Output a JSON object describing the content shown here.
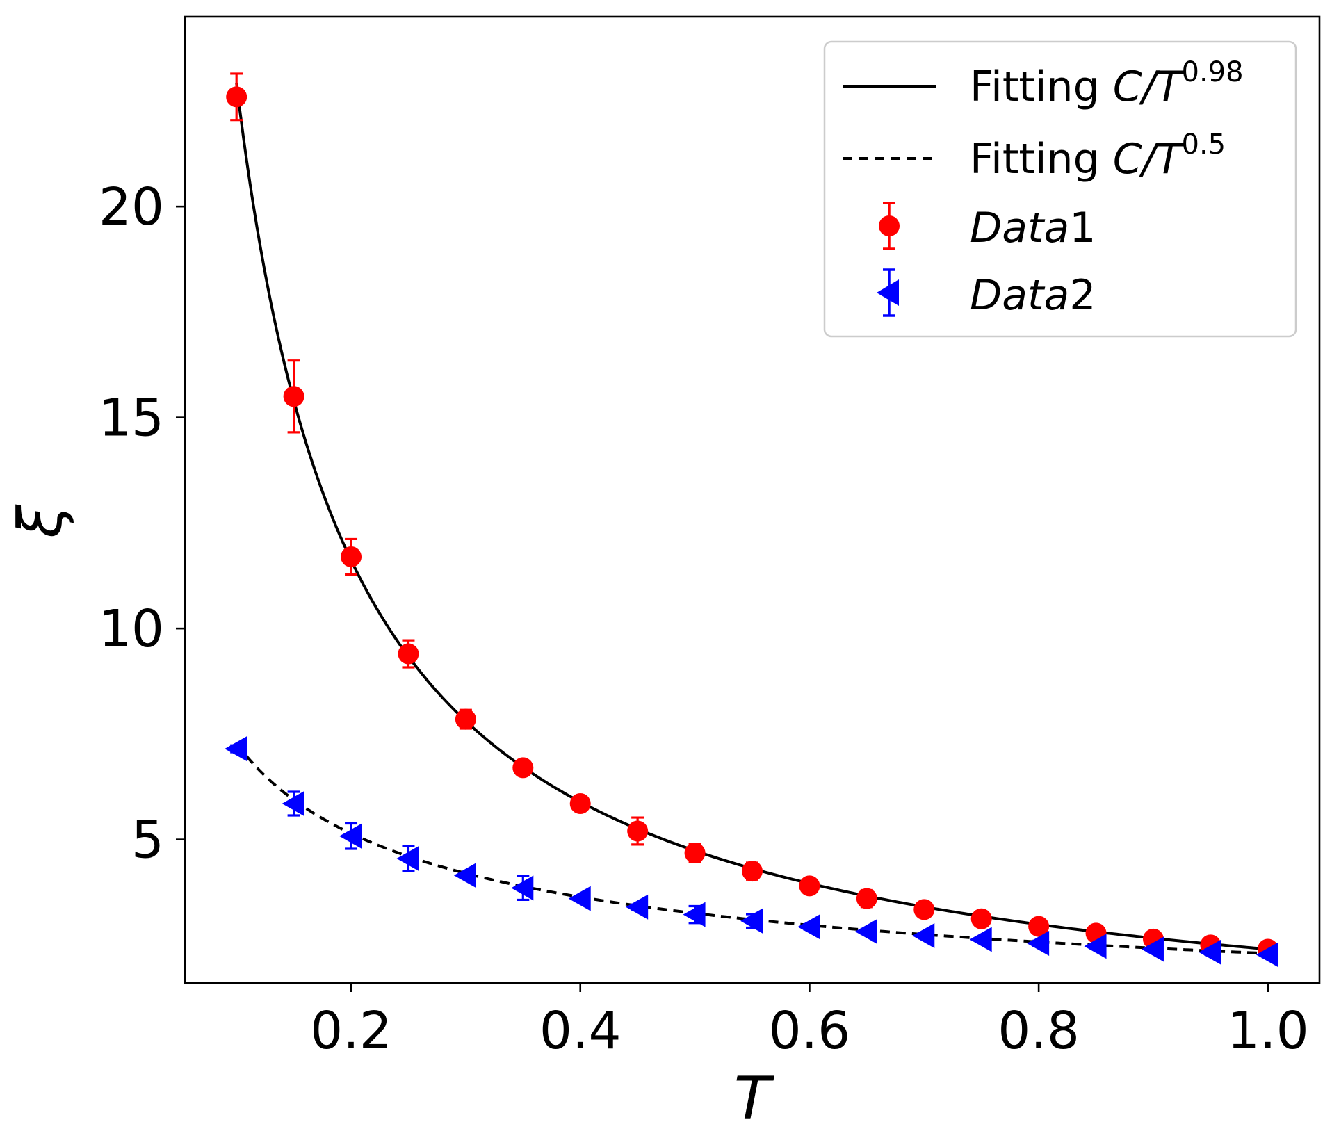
{
  "chart_data": {
    "type": "scatter",
    "title": "",
    "xlabel": "T",
    "ylabel": "ξ",
    "xlim": [
      0.055,
      1.045
    ],
    "ylim": [
      1.6,
      24.5
    ],
    "grid": false,
    "legend_position": "top-right",
    "x_ticks": [
      {
        "value": 0.2,
        "label": "0.2"
      },
      {
        "value": 0.4,
        "label": "0.4"
      },
      {
        "value": 0.6,
        "label": "0.6"
      },
      {
        "value": 0.8,
        "label": "0.8"
      },
      {
        "value": 1.0,
        "label": "1.0"
      }
    ],
    "y_ticks": [
      {
        "value": 5,
        "label": "5"
      },
      {
        "value": 10,
        "label": "10"
      },
      {
        "value": 15,
        "label": "15"
      },
      {
        "value": 20,
        "label": "20"
      }
    ],
    "legend": [
      {
        "name": "Fitting C/T^0.98",
        "prefix": "Fitting ",
        "math": "C/T",
        "exponent": "0.98",
        "style": "line-solid"
      },
      {
        "name": "Fitting C/T^0.5",
        "prefix": "Fitting ",
        "math": "C/T",
        "exponent": "0.5",
        "style": "line-dashed"
      },
      {
        "name": "Data1",
        "italic": "Data",
        "plain": "1",
        "style": "marker-circle"
      },
      {
        "name": "Data2",
        "italic": "Data",
        "plain": "2",
        "style": "marker-triangle-left"
      }
    ],
    "fits": [
      {
        "name": "Fitting C/T^0.98",
        "C": 2.4,
        "exponent": 0.98,
        "style": "solid",
        "color": "#000000",
        "x_range": [
          0.1,
          1.0
        ]
      },
      {
        "name": "Fitting C/T^0.5",
        "C": 2.3,
        "exponent": 0.5,
        "style": "dashed",
        "color": "#000000",
        "x_range": [
          0.1,
          1.0
        ]
      }
    ],
    "series": [
      {
        "name": "Data1",
        "marker": "circle",
        "color": "#ff0000",
        "x": [
          0.1,
          0.15,
          0.2,
          0.25,
          0.3,
          0.35,
          0.4,
          0.45,
          0.5,
          0.55,
          0.6,
          0.65,
          0.7,
          0.75,
          0.8,
          0.85,
          0.9,
          0.95,
          1.0
        ],
        "y": [
          22.6,
          15.5,
          11.7,
          9.4,
          7.85,
          6.7,
          5.85,
          5.2,
          4.68,
          4.25,
          3.9,
          3.6,
          3.34,
          3.12,
          2.94,
          2.78,
          2.64,
          2.5,
          2.4
        ],
        "err": [
          0.55,
          0.85,
          0.42,
          0.32,
          0.22,
          0.12,
          0.12,
          0.32,
          0.22,
          0.2,
          0.12,
          0.2,
          0.12,
          0.1,
          0.08,
          0.08,
          0.06,
          0.06,
          0.05
        ]
      },
      {
        "name": "Data2",
        "marker": "triangle-left",
        "color": "#0000ff",
        "x": [
          0.1,
          0.15,
          0.2,
          0.25,
          0.3,
          0.35,
          0.4,
          0.45,
          0.5,
          0.55,
          0.6,
          0.65,
          0.7,
          0.75,
          0.8,
          0.85,
          0.9,
          0.95,
          1.0
        ],
        "y": [
          7.15,
          5.85,
          5.08,
          4.55,
          4.15,
          3.85,
          3.6,
          3.4,
          3.22,
          3.07,
          2.93,
          2.82,
          2.72,
          2.63,
          2.54,
          2.47,
          2.4,
          2.33,
          2.27
        ],
        "err": [
          0.08,
          0.28,
          0.3,
          0.3,
          0.06,
          0.28,
          0.06,
          0.06,
          0.2,
          0.16,
          0.06,
          0.06,
          0.06,
          0.06,
          0.06,
          0.06,
          0.06,
          0.06,
          0.06
        ]
      }
    ]
  }
}
